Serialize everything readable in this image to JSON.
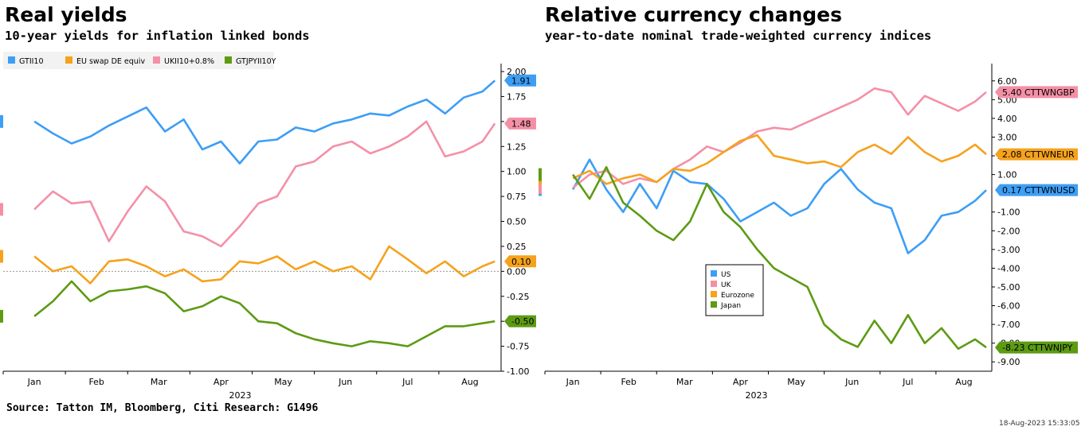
{
  "left": {
    "title": "Real yields",
    "subtitle": "10-year yields for inflation linked bonds"
  },
  "right": {
    "title": "Relative currency changes",
    "subtitle": "year-to-date nominal trade-weighted currency indices"
  },
  "source": "Source: Tatton IM, Bloomberg, Citi Research: G1496",
  "timestamp": "18-Aug-2023 15:33:05",
  "chart_data": [
    {
      "type": "line",
      "title": "Real yields",
      "subtitle": "10-year yields for inflation linked bonds",
      "xlabel": "2023",
      "x_tick_labels": [
        "Jan",
        "Feb",
        "Mar",
        "Apr",
        "May",
        "Jun",
        "Jul",
        "Aug"
      ],
      "y_tick_labels": [
        "2.00",
        "1.75",
        "1.50",
        "1.25",
        "1.00",
        "0.75",
        "0.50",
        "0.25",
        "0.00",
        "-0.25",
        "-0.50",
        "-0.75",
        "-1.00"
      ],
      "ylim": [
        -1.0,
        2.0
      ],
      "legend_position": "top-left",
      "zero_line": true,
      "series": [
        {
          "name": "GTII10",
          "color": "#3d9ef5",
          "last_label": "1.91",
          "x": [
            0,
            0.3,
            0.6,
            0.9,
            1.2,
            1.5,
            1.8,
            2.1,
            2.4,
            2.7,
            3.0,
            3.3,
            3.6,
            3.9,
            4.2,
            4.5,
            4.8,
            5.1,
            5.4,
            5.7,
            6.0,
            6.3,
            6.6,
            6.9,
            7.2,
            7.4
          ],
          "values": [
            1.5,
            1.38,
            1.28,
            1.35,
            1.46,
            1.55,
            1.64,
            1.4,
            1.52,
            1.22,
            1.3,
            1.08,
            1.3,
            1.32,
            1.44,
            1.4,
            1.48,
            1.52,
            1.58,
            1.56,
            1.65,
            1.72,
            1.58,
            1.74,
            1.8,
            1.91
          ]
        },
        {
          "name": "EU swap DE equiv",
          "color": "#f5a21d",
          "last_label": "0.10",
          "x": [
            0,
            0.3,
            0.6,
            0.9,
            1.2,
            1.5,
            1.8,
            2.1,
            2.4,
            2.7,
            3.0,
            3.3,
            3.6,
            3.9,
            4.2,
            4.5,
            4.8,
            5.1,
            5.4,
            5.7,
            6.0,
            6.3,
            6.6,
            6.9,
            7.2,
            7.4
          ],
          "values": [
            0.15,
            0.0,
            0.05,
            -0.12,
            0.1,
            0.12,
            0.05,
            -0.05,
            0.02,
            -0.1,
            -0.08,
            0.1,
            0.08,
            0.15,
            0.02,
            0.1,
            0.0,
            0.05,
            -0.08,
            0.25,
            0.12,
            -0.02,
            0.1,
            -0.05,
            0.05,
            0.1
          ]
        },
        {
          "name": "UKII10+0.8%",
          "color": "#f490a6",
          "last_label": "1.48",
          "x": [
            0,
            0.3,
            0.6,
            0.9,
            1.2,
            1.5,
            1.8,
            2.1,
            2.4,
            2.7,
            3.0,
            3.3,
            3.6,
            3.9,
            4.2,
            4.5,
            4.8,
            5.1,
            5.4,
            5.7,
            6.0,
            6.3,
            6.6,
            6.9,
            7.2,
            7.4
          ],
          "values": [
            0.62,
            0.8,
            0.68,
            0.7,
            0.3,
            0.6,
            0.85,
            0.7,
            0.4,
            0.35,
            0.25,
            0.45,
            0.68,
            0.75,
            1.05,
            1.1,
            1.25,
            1.3,
            1.18,
            1.25,
            1.35,
            1.5,
            1.15,
            1.2,
            1.3,
            1.48
          ]
        },
        {
          "name": "GTJPYII10Y",
          "color": "#5d9b13",
          "last_label": "-0.50",
          "x": [
            0,
            0.3,
            0.6,
            0.9,
            1.2,
            1.5,
            1.8,
            2.1,
            2.4,
            2.7,
            3.0,
            3.3,
            3.6,
            3.9,
            4.2,
            4.5,
            4.8,
            5.1,
            5.4,
            5.7,
            6.0,
            6.3,
            6.6,
            6.9,
            7.2,
            7.4
          ],
          "values": [
            -0.45,
            -0.3,
            -0.1,
            -0.3,
            -0.2,
            -0.18,
            -0.15,
            -0.22,
            -0.4,
            -0.35,
            -0.25,
            -0.32,
            -0.5,
            -0.52,
            -0.62,
            -0.68,
            -0.72,
            -0.75,
            -0.7,
            -0.72,
            -0.75,
            -0.65,
            -0.55,
            -0.55,
            -0.52,
            -0.5
          ]
        }
      ]
    },
    {
      "type": "line",
      "title": "Relative currency changes",
      "subtitle": "year-to-date nominal trade-weighted currency indices",
      "xlabel": "2023",
      "x_tick_labels": [
        "Jan",
        "Feb",
        "Mar",
        "Apr",
        "May",
        "Jun",
        "Jul",
        "Aug"
      ],
      "y_tick_labels": [
        "6.00",
        "5.00",
        "4.00",
        "3.00",
        "2.00",
        "1.00",
        "-1.00",
        "-2.00",
        "-3.00",
        "-4.00",
        "-5.00",
        "-6.00",
        "-7.00",
        "-8.00",
        "-9.00"
      ],
      "ylim": [
        -9.5,
        6.5
      ],
      "legend_position": "center",
      "series": [
        {
          "name": "US",
          "color": "#3d9ef5",
          "last_label": "0.17 CTTWNUSD",
          "x": [
            0,
            0.3,
            0.6,
            0.9,
            1.2,
            1.5,
            1.8,
            2.1,
            2.4,
            2.7,
            3.0,
            3.3,
            3.6,
            3.9,
            4.2,
            4.5,
            4.8,
            5.1,
            5.4,
            5.7,
            6.0,
            6.3,
            6.6,
            6.9,
            7.2,
            7.4
          ],
          "values": [
            0.2,
            1.8,
            0.2,
            -1.0,
            0.5,
            -0.8,
            1.2,
            0.6,
            0.5,
            -0.3,
            -1.5,
            -1.0,
            -0.5,
            -1.2,
            -0.8,
            0.5,
            1.3,
            0.2,
            -0.5,
            -0.8,
            -3.2,
            -2.5,
            -1.2,
            -1.0,
            -0.4,
            0.17
          ]
        },
        {
          "name": "UK",
          "color": "#f490a6",
          "last_label": "5.40 CTTWNGBP",
          "x": [
            0,
            0.3,
            0.6,
            0.9,
            1.2,
            1.5,
            1.8,
            2.1,
            2.4,
            2.7,
            3.0,
            3.3,
            3.6,
            3.9,
            4.2,
            4.5,
            4.8,
            5.1,
            5.4,
            5.7,
            6.0,
            6.3,
            6.6,
            6.9,
            7.2,
            7.4
          ],
          "values": [
            0.3,
            1.0,
            1.2,
            0.5,
            0.8,
            0.6,
            1.3,
            1.8,
            2.5,
            2.2,
            2.7,
            3.3,
            3.5,
            3.4,
            3.8,
            4.2,
            4.6,
            5.0,
            5.6,
            5.4,
            4.2,
            5.2,
            4.8,
            4.4,
            4.9,
            5.4
          ]
        },
        {
          "name": "Eurozone",
          "color": "#f5a21d",
          "last_label": "2.08 CTTWNEUR",
          "x": [
            0,
            0.3,
            0.6,
            0.9,
            1.2,
            1.5,
            1.8,
            2.1,
            2.4,
            2.7,
            3.0,
            3.3,
            3.6,
            3.9,
            4.2,
            4.5,
            4.8,
            5.1,
            5.4,
            5.7,
            6.0,
            6.3,
            6.6,
            6.9,
            7.2,
            7.4
          ],
          "values": [
            0.8,
            1.2,
            0.5,
            0.8,
            1.0,
            0.6,
            1.3,
            1.2,
            1.6,
            2.2,
            2.8,
            3.1,
            2.0,
            1.8,
            1.6,
            1.7,
            1.4,
            2.2,
            2.6,
            2.1,
            3.0,
            2.2,
            1.7,
            2.0,
            2.6,
            2.08
          ]
        },
        {
          "name": "Japan",
          "color": "#5d9b13",
          "last_label": "-8.23 CTTWNJPY",
          "x": [
            0,
            0.3,
            0.6,
            0.9,
            1.2,
            1.5,
            1.8,
            2.1,
            2.4,
            2.7,
            3.0,
            3.3,
            3.6,
            3.9,
            4.2,
            4.5,
            4.8,
            5.1,
            5.4,
            5.7,
            6.0,
            6.3,
            6.6,
            6.9,
            7.2,
            7.4
          ],
          "values": [
            1.0,
            -0.3,
            1.4,
            -0.5,
            -1.2,
            -2.0,
            -2.5,
            -1.5,
            0.5,
            -1.0,
            -1.8,
            -3.0,
            -4.0,
            -4.5,
            -5.0,
            -7.0,
            -7.8,
            -8.2,
            -6.8,
            -8.0,
            -6.5,
            -8.0,
            -7.2,
            -8.3,
            -7.8,
            -8.23
          ]
        }
      ]
    }
  ]
}
